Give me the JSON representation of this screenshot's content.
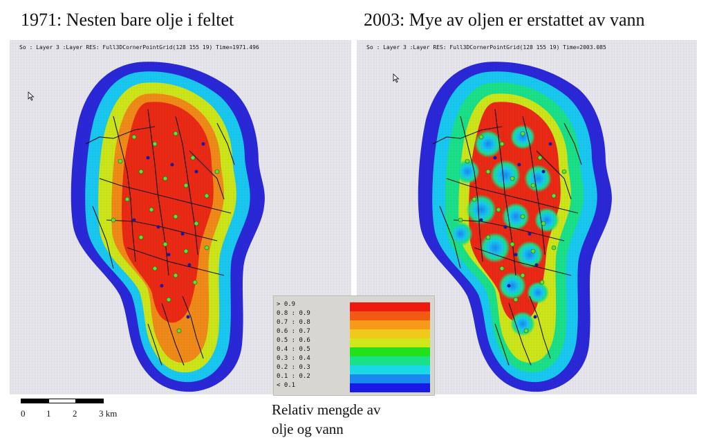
{
  "headings": {
    "left": "1971: Nesten bare olje i feltet",
    "right": "2003: Mye av oljen er erstattet av vann"
  },
  "panels": {
    "left_caption": "So : Layer 3 :Layer RES: Full3DCornerPointGrid(128 155 19) Time=1971.496",
    "right_caption": "So : Layer 3 :Layer RES: Full3DCornerPointGrid(128 155 19) Time=2003.085"
  },
  "legend": {
    "rows": [
      {
        "label": "> 0.9",
        "color": "#ee1a10"
      },
      {
        "label": "0.8  : 0.9",
        "color": "#f25a14"
      },
      {
        "label": "0.7  : 0.8",
        "color": "#f79a18"
      },
      {
        "label": "0.6  : 0.7",
        "color": "#f0c91a"
      },
      {
        "label": "0.5  : 0.6",
        "color": "#cfe81a"
      },
      {
        "label": "0.4  : 0.5",
        "color": "#22e01a"
      },
      {
        "label": "0.3  : 0.4",
        "color": "#1ae08a"
      },
      {
        "label": "0.2  : 0.3",
        "color": "#1ad8e6"
      },
      {
        "label": "0.1  : 0.2",
        "color": "#1a88f0"
      },
      {
        "label": "< 0.1",
        "color": "#1a1ae6"
      }
    ],
    "caption_line1": "Relativ mengde av",
    "caption_line2": "olje og vann"
  },
  "scale": {
    "labels": [
      "0",
      "1",
      "2",
      "3 km"
    ]
  },
  "colors": {
    "water": "#2a28d8",
    "low": "#19c8f0",
    "mid": "#cde61a",
    "high_orange": "#f08a18",
    "oil": "#ea2a14",
    "well": "#5ee03a",
    "injector": "#1a1aa0",
    "fault": "#111111"
  }
}
